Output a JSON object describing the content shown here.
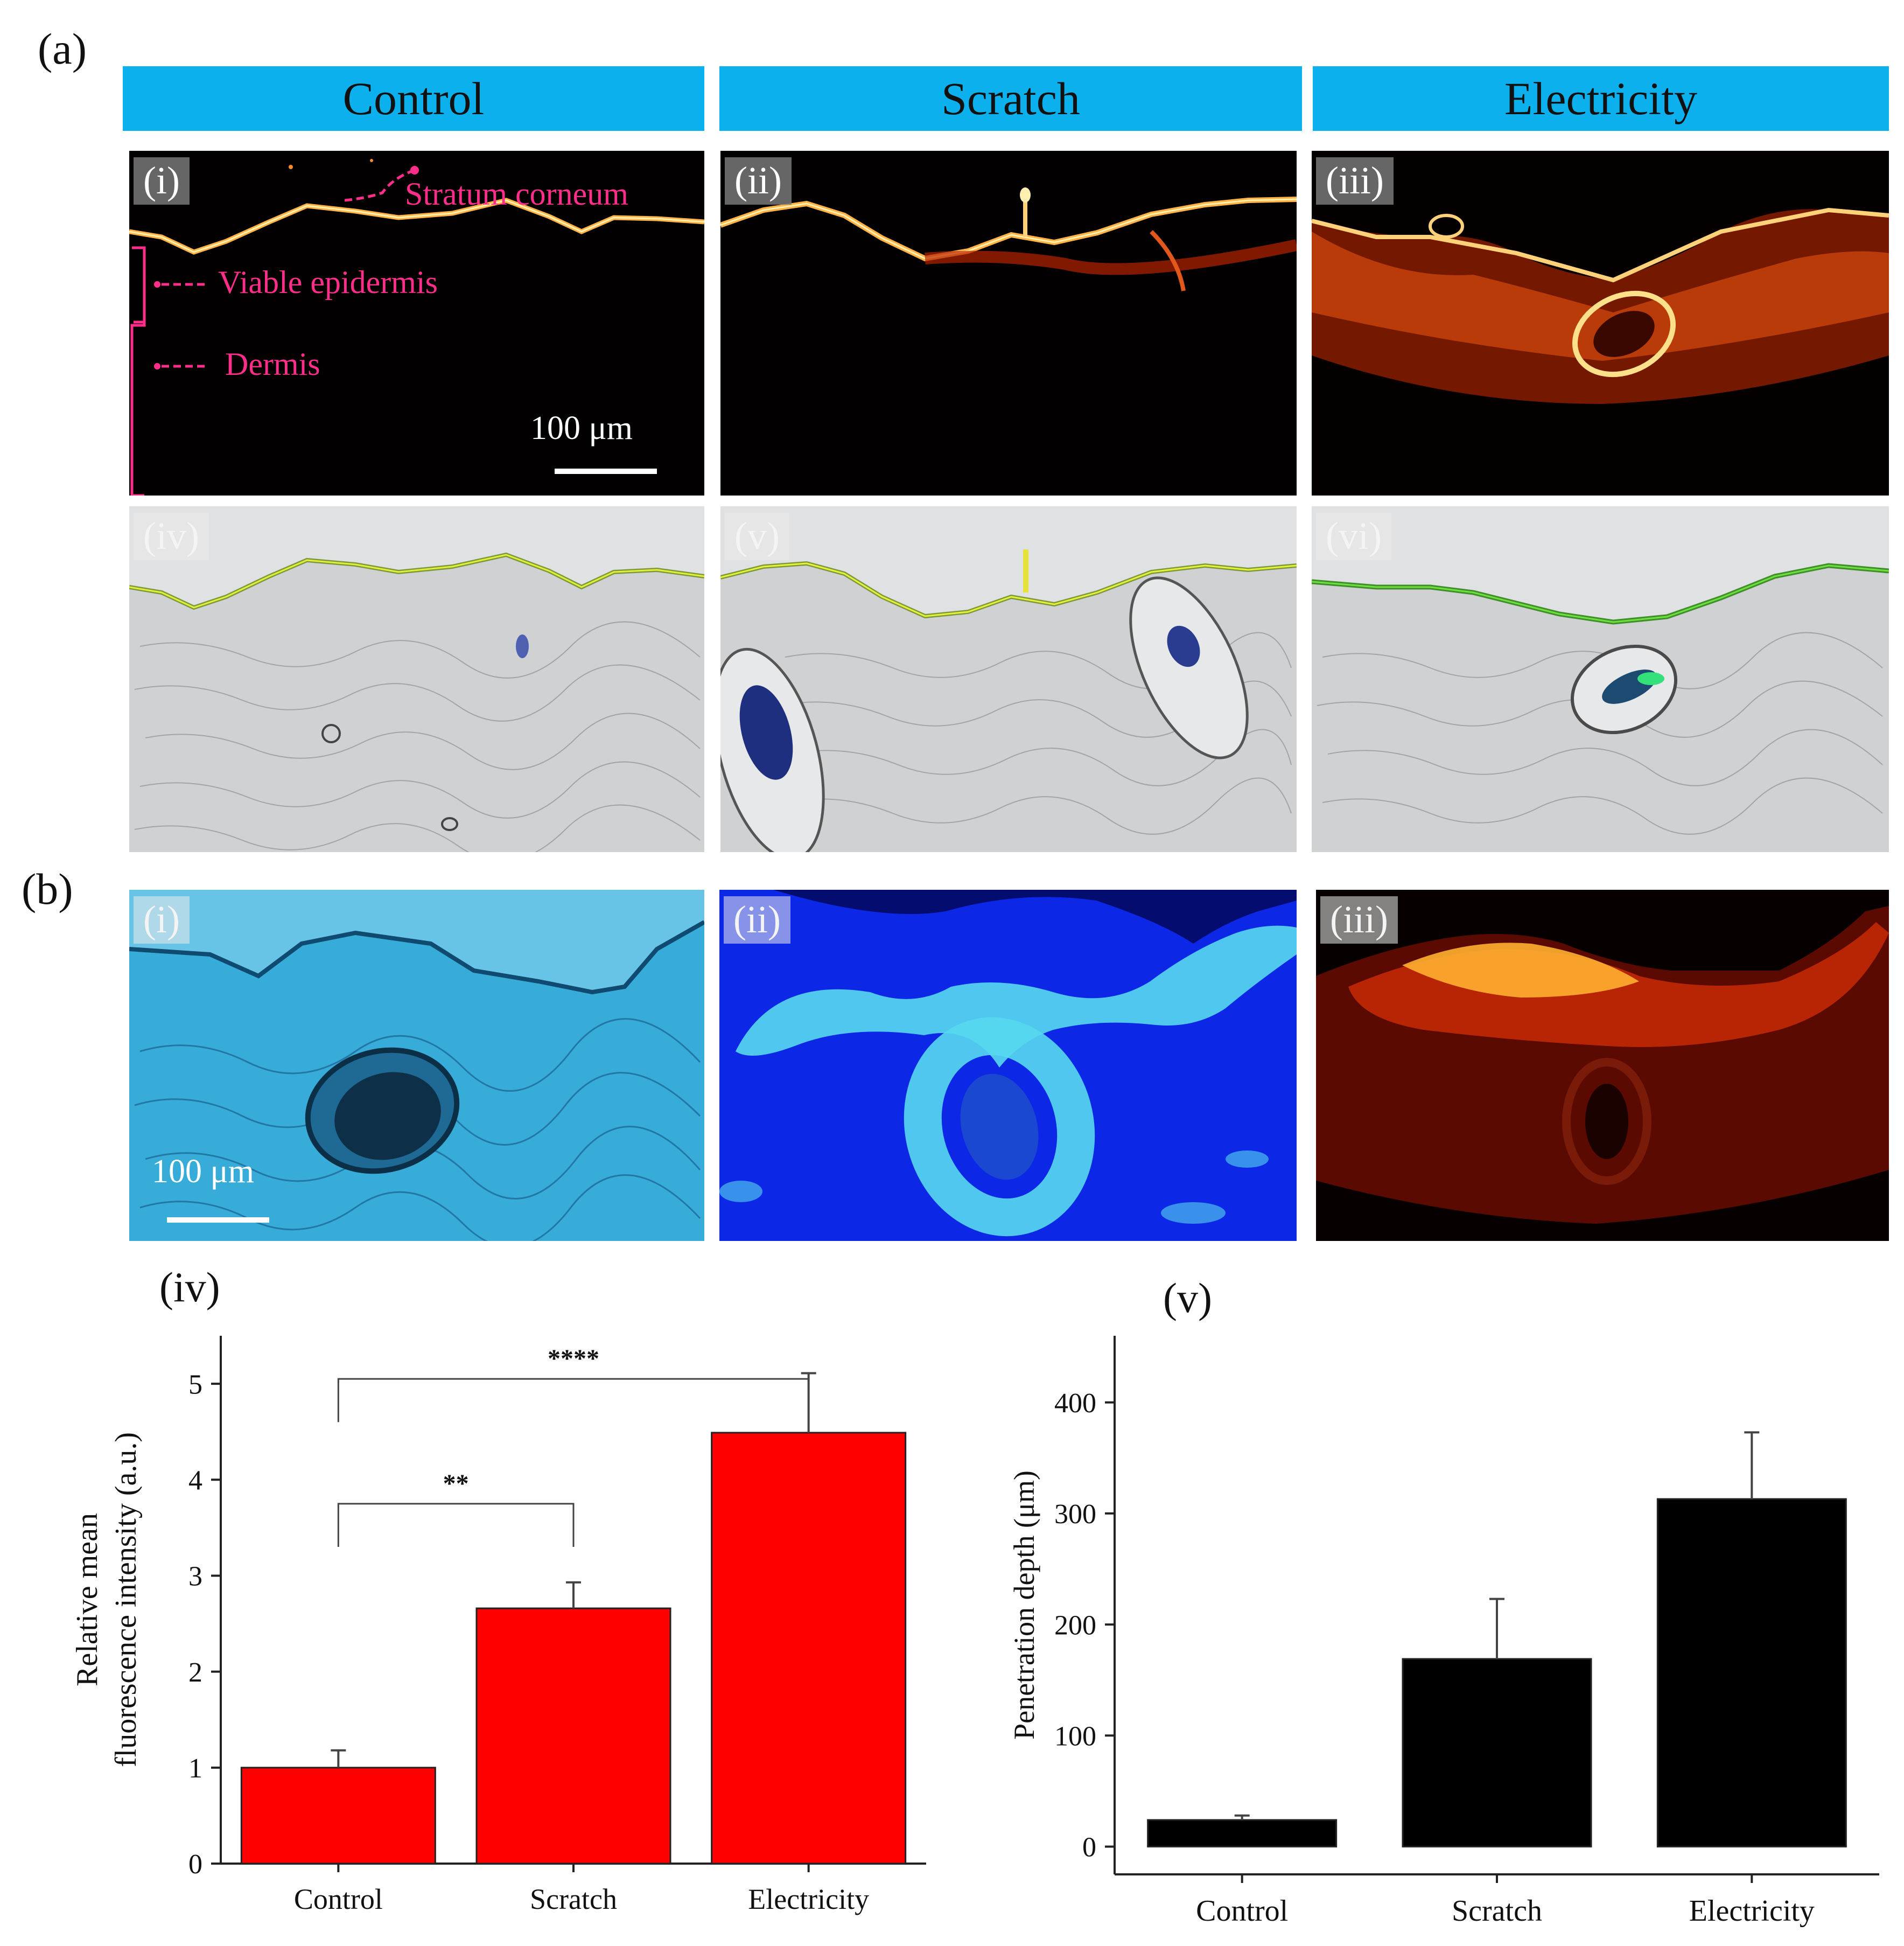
{
  "figure": {
    "panel_a_label": "(a)",
    "panel_b_label": "(b)",
    "columns": [
      "Control",
      "Scratch",
      "Electricity"
    ],
    "fluorescence_row_labels": [
      "(i)",
      "(ii)",
      "(iii)"
    ],
    "brightfield_row_labels": [
      "(iv)",
      "(v)",
      "(vi)"
    ],
    "annotations": {
      "stratum_corneum": "Stratum corneum",
      "viable_epidermis": "Viable epidermis",
      "dermis": "Dermis"
    },
    "scale_bar_a": "100 μm",
    "panel_b_image_labels": [
      "(i)",
      "(ii)",
      "(iii)"
    ],
    "scale_bar_b": "100 μm",
    "colors": {
      "header_bar": "#0bb0ec",
      "annotation": "#ff2e8a",
      "bar_red": "#ff0000",
      "bar_black": "#000000"
    }
  },
  "chart_data": [
    {
      "panel_label": "(iv)",
      "type": "bar",
      "categories": [
        "Control",
        "Scratch",
        "Electricity"
      ],
      "values": [
        1.0,
        2.66,
        4.49
      ],
      "errors": [
        0.18,
        0.27,
        0.62
      ],
      "ylabel_line1": "Relative mean",
      "ylabel_line2": "fluorescence intensity (a.u.)",
      "ylim": [
        0,
        5.5
      ],
      "yticks": [
        "0",
        "1",
        "2",
        "3",
        "4",
        "5"
      ],
      "color": "#ff0000",
      "significance": [
        {
          "between": [
            "Control",
            "Scratch"
          ],
          "label": "**"
        },
        {
          "between": [
            "Control",
            "Electricity"
          ],
          "label": "****"
        }
      ]
    },
    {
      "panel_label": "(v)",
      "type": "bar",
      "categories": [
        "Control",
        "Scratch",
        "Electricity"
      ],
      "values": [
        24,
        169,
        313
      ],
      "errors": [
        4,
        54,
        60
      ],
      "ylabel": "Penetration depth (μm)",
      "ylim": [
        -25,
        460
      ],
      "yticks": [
        "0",
        "100",
        "200",
        "300",
        "400"
      ],
      "color": "#000000"
    }
  ]
}
